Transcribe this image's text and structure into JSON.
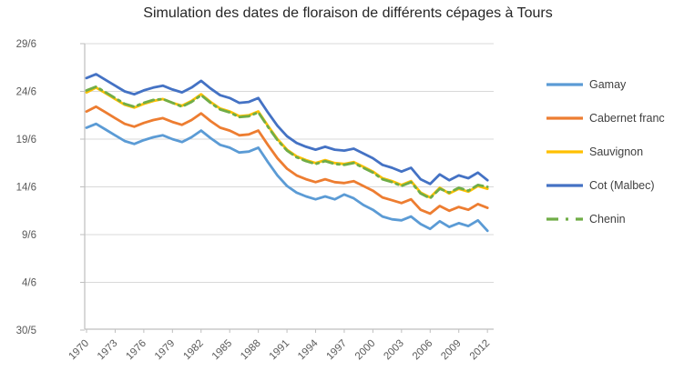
{
  "chart_data": {
    "type": "line",
    "title": "Simulation des dates de floraison de différents cépages à Tours",
    "x": [
      1970,
      1971,
      1972,
      1973,
      1974,
      1975,
      1976,
      1977,
      1978,
      1979,
      1980,
      1981,
      1982,
      1983,
      1984,
      1985,
      1986,
      1987,
      1988,
      1989,
      1990,
      1991,
      1992,
      1993,
      1994,
      1995,
      1996,
      1997,
      1998,
      1999,
      2000,
      2001,
      2002,
      2003,
      2004,
      2005,
      2006,
      2007,
      2008,
      2009,
      2010,
      2011,
      2012
    ],
    "x_tick_labels": [
      "1970",
      "1973",
      "1976",
      "1979",
      "1982",
      "1985",
      "1988",
      "1991",
      "1994",
      "1997",
      "2000",
      "2003",
      "2006",
      "2009",
      "2012"
    ],
    "x_tick_step": 3,
    "value_scale": "flowering date expressed as day of June (29 = 29/6, -1 = 30/5)",
    "yticks": [
      {
        "label": "29/6",
        "value": 29
      },
      {
        "label": "24/6",
        "value": 24
      },
      {
        "label": "19/6",
        "value": 19
      },
      {
        "label": "14/6",
        "value": 14
      },
      {
        "label": "9/6",
        "value": 9
      },
      {
        "label": "4/6",
        "value": 4
      },
      {
        "label": "30/5",
        "value": -1
      }
    ],
    "grid": "horizontal",
    "legend_position": "right",
    "series": [
      {
        "name": "Gamay",
        "key": "gamay",
        "color": "#5B9BD5",
        "dash": "",
        "values": [
          20.2,
          20.6,
          20.0,
          19.4,
          18.8,
          18.5,
          18.9,
          19.2,
          19.4,
          19.0,
          18.7,
          19.2,
          19.9,
          19.1,
          18.4,
          18.1,
          17.6,
          17.7,
          18.1,
          16.6,
          15.2,
          14.1,
          13.4,
          13.0,
          12.7,
          13.0,
          12.7,
          13.2,
          12.8,
          12.1,
          11.6,
          10.9,
          10.6,
          10.5,
          10.9,
          10.1,
          9.6,
          10.4,
          9.8,
          10.2,
          9.9,
          10.5,
          9.4
        ]
      },
      {
        "name": "Cabernet franc",
        "key": "cabernet-franc",
        "color": "#ED7D31",
        "dash": "",
        "values": [
          21.9,
          22.4,
          21.8,
          21.2,
          20.6,
          20.3,
          20.7,
          21.0,
          21.2,
          20.8,
          20.5,
          21.0,
          21.7,
          20.9,
          20.2,
          19.9,
          19.4,
          19.5,
          19.9,
          18.4,
          17.0,
          15.9,
          15.2,
          14.8,
          14.5,
          14.8,
          14.5,
          14.4,
          14.6,
          14.1,
          13.6,
          12.9,
          12.6,
          12.3,
          12.7,
          11.6,
          11.2,
          12.0,
          11.5,
          11.9,
          11.6,
          12.2,
          11.8
        ]
      },
      {
        "name": "Sauvignon",
        "key": "sauvignon",
        "color": "#FFC000",
        "dash": "",
        "values": [
          23.9,
          24.4,
          23.8,
          23.2,
          22.6,
          22.3,
          22.7,
          23.0,
          23.2,
          22.8,
          22.5,
          23.0,
          23.7,
          22.9,
          22.2,
          21.9,
          21.4,
          21.5,
          21.9,
          20.4,
          19.0,
          17.9,
          17.2,
          16.8,
          16.5,
          16.8,
          16.5,
          16.4,
          16.6,
          16.1,
          15.6,
          14.9,
          14.6,
          14.2,
          14.6,
          13.4,
          12.9,
          13.9,
          13.3,
          13.8,
          13.5,
          14.1,
          13.8
        ]
      },
      {
        "name": "Cot (Malbec)",
        "key": "cot-malbec",
        "color": "#4472C4",
        "dash": "",
        "values": [
          25.4,
          25.8,
          25.2,
          24.6,
          24.0,
          23.7,
          24.1,
          24.4,
          24.6,
          24.2,
          23.9,
          24.4,
          25.1,
          24.3,
          23.6,
          23.3,
          22.8,
          22.9,
          23.3,
          21.8,
          20.4,
          19.3,
          18.6,
          18.2,
          17.9,
          18.2,
          17.9,
          17.8,
          18.0,
          17.5,
          17.0,
          16.3,
          16.0,
          15.6,
          16.0,
          14.8,
          14.3,
          15.3,
          14.7,
          15.2,
          14.9,
          15.5,
          14.7
        ]
      },
      {
        "name": "Chenin",
        "key": "chenin",
        "color": "#70AD47",
        "dash": "11 5 2.5 5",
        "values": [
          24.1,
          24.5,
          23.9,
          23.3,
          22.7,
          22.4,
          22.8,
          23.1,
          23.2,
          22.8,
          22.4,
          22.9,
          23.6,
          22.8,
          22.1,
          21.8,
          21.3,
          21.4,
          21.8,
          20.3,
          18.9,
          17.8,
          17.1,
          16.7,
          16.4,
          16.7,
          16.4,
          16.3,
          16.5,
          16.0,
          15.5,
          14.8,
          14.5,
          14.1,
          14.5,
          13.3,
          12.8,
          13.8,
          13.4,
          13.9,
          13.6,
          14.2,
          14.0
        ]
      }
    ],
    "colors": {
      "gridline": "#D9D9D9",
      "axis": "#BFBFBF",
      "tick_text": "#595959",
      "title_text": "#262626",
      "legend_text": "#3F3F3F"
    }
  }
}
